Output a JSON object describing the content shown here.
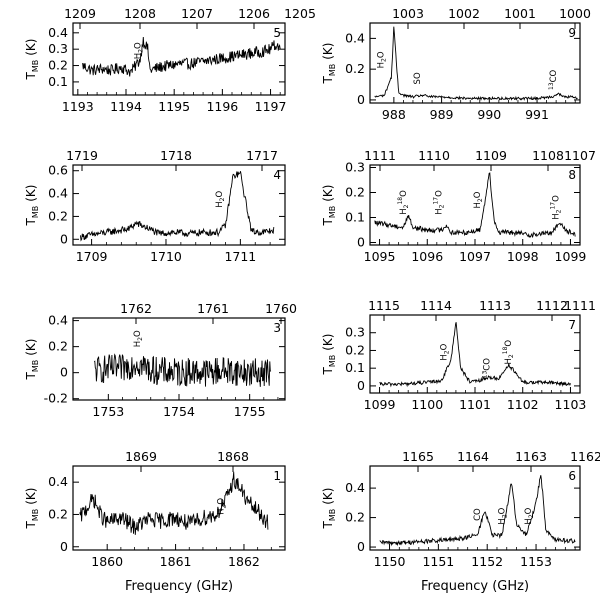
{
  "chart_data": [
    {
      "type": "line",
      "panel_label": "5",
      "bottom_ticks": [
        "1193",
        "1194",
        "1195",
        "1196",
        "1197"
      ],
      "top_ticks": [
        "1209",
        "1208",
        "1207",
        "1206",
        "1205"
      ],
      "y_ticks": [
        "0.1",
        "0.2",
        "0.3",
        "0.4"
      ],
      "xlim": [
        1192.9,
        1197.3
      ],
      "ylim": [
        0.02,
        0.46
      ],
      "ylabel_main": "T",
      "ylabel_sub": "MB",
      "ylabel_unit": "(K)",
      "xlabel": "",
      "annotations": [
        {
          "main": "H",
          "sub": "2",
          "tail": "O",
          "x": 1194.3,
          "y": 0.29
        }
      ],
      "series": [
        {
          "x": [
            1193.1,
            1193.3,
            1193.5,
            1193.7,
            1193.9,
            1194.1,
            1194.3,
            1194.35,
            1194.45,
            1194.5,
            1194.7,
            1194.9,
            1195.1,
            1195.3,
            1195.5,
            1195.7,
            1195.9,
            1196.1,
            1196.3,
            1196.5,
            1196.7,
            1196.9,
            1197.0,
            1197.1,
            1197.2
          ],
          "y": [
            0.2,
            0.17,
            0.18,
            0.17,
            0.19,
            0.16,
            0.24,
            0.36,
            0.3,
            0.17,
            0.19,
            0.2,
            0.21,
            0.21,
            0.22,
            0.23,
            0.24,
            0.25,
            0.26,
            0.27,
            0.28,
            0.29,
            0.3,
            0.33,
            0.31
          ],
          "noise": 0.035
        }
      ]
    },
    {
      "type": "line",
      "panel_label": "4",
      "bottom_ticks": [
        "1709",
        "1710",
        "1711"
      ],
      "top_ticks": [
        "1719",
        "1718",
        "1717"
      ],
      "y_ticks": [
        "0",
        "0.2",
        "0.4",
        "0.6"
      ],
      "xlim": [
        1708.75,
        1711.6
      ],
      "ylim": [
        -0.05,
        0.65
      ],
      "ylabel_main": "T",
      "ylabel_sub": "MB",
      "ylabel_unit": "(K)",
      "xlabel": "",
      "annotations": [
        {
          "main": "H",
          "sub": "2",
          "tail": "O",
          "x": 1710.75,
          "y": 0.35
        }
      ],
      "series": [
        {
          "x": [
            1708.85,
            1709.1,
            1709.3,
            1709.5,
            1709.6,
            1709.75,
            1709.9,
            1710.1,
            1710.3,
            1710.5,
            1710.7,
            1710.8,
            1710.9,
            1711.0,
            1711.05,
            1711.15,
            1711.3,
            1711.45
          ],
          "y": [
            0.02,
            0.05,
            0.07,
            0.09,
            0.14,
            0.1,
            0.05,
            0.06,
            0.05,
            0.06,
            0.06,
            0.12,
            0.55,
            0.58,
            0.4,
            0.07,
            0.06,
            0.08
          ],
          "noise": 0.03
        }
      ]
    },
    {
      "type": "line",
      "panel_label": "3",
      "bottom_ticks": [
        "1753",
        "1754",
        "1755"
      ],
      "top_ticks": [
        "1762",
        "1761",
        "1760"
      ],
      "y_ticks": [
        "-0.2",
        "0",
        "0.2",
        "0.4"
      ],
      "xlim": [
        1752.5,
        1755.5
      ],
      "ylim": [
        -0.21,
        0.42
      ],
      "ylabel_main": "T",
      "ylabel_sub": "MB",
      "ylabel_unit": "(K)",
      "xlabel": "",
      "annotations": [
        {
          "main": "H",
          "sub": "2",
          "tail": "O",
          "x": 1753.45,
          "y": 0.26
        }
      ],
      "series": [
        {
          "x": [
            1752.8,
            1753.0,
            1753.2,
            1753.4,
            1753.6,
            1753.8,
            1754.0,
            1754.2,
            1754.4,
            1754.6,
            1754.8,
            1755.0,
            1755.2,
            1755.3
          ],
          "y": [
            0.02,
            0.03,
            0.03,
            0.08,
            0.02,
            0.01,
            0.0,
            0.01,
            0.0,
            0.02,
            0.01,
            0.0,
            0.0,
            0.01
          ],
          "noise": 0.11
        }
      ]
    },
    {
      "type": "line",
      "panel_label": "1",
      "bottom_ticks": [
        "1860",
        "1861",
        "1862"
      ],
      "top_ticks": [
        "1869",
        "1868"
      ],
      "y_ticks": [
        "0",
        "0.2",
        "0.4"
      ],
      "xlim": [
        1859.5,
        1862.6
      ],
      "ylim": [
        -0.02,
        0.5
      ],
      "ylabel_main": "T",
      "ylabel_sub": "MB",
      "ylabel_unit": "(K)",
      "xlabel": "Frequency (GHz)",
      "annotations": [
        {
          "main": "H",
          "sub": "2",
          "tail": "O",
          "x": 1861.7,
          "y": 0.25
        }
      ],
      "series": [
        {
          "x": [
            1859.6,
            1859.8,
            1859.9,
            1860.0,
            1860.2,
            1860.4,
            1860.6,
            1860.8,
            1861.0,
            1861.2,
            1861.4,
            1861.6,
            1861.75,
            1861.85,
            1861.95,
            1862.05,
            1862.2,
            1862.35
          ],
          "y": [
            0.18,
            0.3,
            0.2,
            0.15,
            0.18,
            0.12,
            0.17,
            0.16,
            0.18,
            0.14,
            0.18,
            0.2,
            0.3,
            0.42,
            0.36,
            0.28,
            0.22,
            0.15
          ],
          "noise": 0.05
        }
      ]
    },
    {
      "type": "line",
      "panel_label": "9",
      "bottom_ticks": [
        "988",
        "989",
        "990",
        "991"
      ],
      "top_ticks": [
        "1003",
        "1002",
        "1001",
        "1000"
      ],
      "y_ticks": [
        "0",
        "0.2",
        "0.4"
      ],
      "xlim": [
        987.5,
        991.9
      ],
      "ylim": [
        -0.02,
        0.5
      ],
      "ylabel_main": "T",
      "ylabel_sub": "MB",
      "ylabel_unit": "(K)",
      "xlabel": "",
      "annotations": [
        {
          "main": "H",
          "sub": "2",
          "tail": "O",
          "x": 987.78,
          "y": 0.26
        },
        {
          "main": "SO",
          "sub": "",
          "tail": "",
          "x": 988.55,
          "y": 0.14
        },
        {
          "main": "CO",
          "sup": "13",
          "sub": "",
          "tail": "",
          "x": 991.4,
          "y": 0.13
        }
      ],
      "series": [
        {
          "x": [
            987.6,
            987.8,
            987.95,
            988.0,
            988.05,
            988.1,
            988.2,
            988.4,
            988.6,
            988.8,
            989.0,
            989.5,
            990.0,
            990.5,
            991.0,
            991.3,
            991.45,
            991.55,
            991.7,
            991.85
          ],
          "y": [
            0.02,
            0.03,
            0.15,
            0.48,
            0.25,
            0.05,
            0.03,
            0.02,
            0.03,
            0.02,
            0.02,
            0.01,
            0.01,
            0.01,
            0.01,
            0.02,
            0.04,
            0.02,
            0.02,
            0.01
          ],
          "noise": 0.008
        }
      ]
    },
    {
      "type": "line",
      "panel_label": "8",
      "bottom_ticks": [
        "1095",
        "1096",
        "1097",
        "1098",
        "1099"
      ],
      "top_ticks": [
        "1111",
        "1110",
        "1109",
        "1108",
        "1107"
      ],
      "y_ticks": [
        "0",
        "0.1",
        "0.2",
        "0.3"
      ],
      "xlim": [
        1094.8,
        1099.2
      ],
      "ylim": [
        -0.01,
        0.31
      ],
      "ylabel_main": "T",
      "ylabel_sub": "MB",
      "ylabel_unit": "(K)",
      "xlabel": "",
      "annotations": [
        {
          "main": "H",
          "sub": "2",
          "sup": "18",
          "tail": "O",
          "x": 1095.55,
          "y": 0.16
        },
        {
          "main": "H",
          "sub": "2",
          "sup": "17",
          "tail": "O",
          "x": 1096.3,
          "y": 0.16
        },
        {
          "main": "H",
          "sub": "2",
          "tail": "O",
          "x": 1097.1,
          "y": 0.17
        },
        {
          "main": "H",
          "sub": "2",
          "sup": "17",
          "tail": "O",
          "x": 1098.75,
          "y": 0.14
        }
      ],
      "series": [
        {
          "x": [
            1094.9,
            1095.2,
            1095.5,
            1095.6,
            1095.7,
            1096.0,
            1096.3,
            1096.4,
            1096.5,
            1096.8,
            1097.1,
            1097.2,
            1097.3,
            1097.4,
            1097.5,
            1097.8,
            1098.2,
            1098.6,
            1098.8,
            1098.9,
            1099.1
          ],
          "y": [
            0.08,
            0.07,
            0.06,
            0.11,
            0.06,
            0.05,
            0.05,
            0.07,
            0.04,
            0.04,
            0.05,
            0.15,
            0.29,
            0.09,
            0.04,
            0.04,
            0.03,
            0.04,
            0.08,
            0.05,
            0.03
          ],
          "noise": 0.01
        }
      ]
    },
    {
      "type": "line",
      "panel_label": "7",
      "bottom_ticks": [
        "1099",
        "1100",
        "1101",
        "1102",
        "1103"
      ],
      "top_ticks": [
        "1115",
        "1114",
        "1113",
        "1112",
        "1111"
      ],
      "y_ticks": [
        "0",
        "0.1",
        "0.2",
        "0.3"
      ],
      "xlim": [
        1098.8,
        1103.2
      ],
      "ylim": [
        -0.04,
        0.4
      ],
      "ylabel_main": "T",
      "ylabel_sub": "MB",
      "ylabel_unit": "(K)",
      "xlabel": "",
      "annotations": [
        {
          "main": "H",
          "sub": "2",
          "tail": "O",
          "x": 1100.4,
          "y": 0.19
        },
        {
          "main": "CO",
          "sup": "13",
          "sub": "",
          "tail": "",
          "x": 1101.3,
          "y": 0.1
        },
        {
          "main": "H",
          "sub": "2",
          "sup": "18",
          "tail": "O",
          "x": 1101.75,
          "y": 0.19
        }
      ],
      "series": [
        {
          "x": [
            1099.0,
            1099.5,
            1100.0,
            1100.3,
            1100.5,
            1100.6,
            1100.7,
            1100.9,
            1101.1,
            1101.3,
            1101.5,
            1101.7,
            1101.8,
            1102.0,
            1102.5,
            1103.0
          ],
          "y": [
            0.01,
            0.01,
            0.02,
            0.03,
            0.15,
            0.37,
            0.1,
            0.02,
            0.03,
            0.05,
            0.04,
            0.12,
            0.09,
            0.02,
            0.02,
            0.01
          ],
          "noise": 0.01
        }
      ]
    },
    {
      "type": "line",
      "panel_label": "6",
      "bottom_ticks": [
        "1150",
        "1151",
        "1152",
        "1153"
      ],
      "top_ticks": [
        "1165",
        "1164",
        "1163",
        "1162"
      ],
      "y_ticks": [
        "0",
        "0.2",
        "0.4"
      ],
      "xlim": [
        1149.6,
        1153.9
      ],
      "ylim": [
        -0.02,
        0.55
      ],
      "ylabel_main": "T",
      "ylabel_sub": "MB",
      "ylabel_unit": "(K)",
      "xlabel": "Frequency (GHz)",
      "annotations": [
        {
          "main": "CO",
          "sub": "",
          "tail": "",
          "x": 1151.85,
          "y": 0.22
        },
        {
          "main": "H",
          "sub": "2",
          "tail": "O",
          "x": 1152.35,
          "y": 0.21
        },
        {
          "main": "H",
          "sub": "2",
          "tail": "O",
          "x": 1152.9,
          "y": 0.21
        }
      ],
      "series": [
        {
          "x": [
            1149.8,
            1150.3,
            1150.8,
            1151.3,
            1151.8,
            1151.95,
            1152.0,
            1152.1,
            1152.3,
            1152.45,
            1152.5,
            1152.6,
            1152.8,
            1153.0,
            1153.1,
            1153.2,
            1153.4,
            1153.8
          ],
          "y": [
            0.03,
            0.03,
            0.04,
            0.05,
            0.08,
            0.25,
            0.2,
            0.08,
            0.08,
            0.35,
            0.45,
            0.15,
            0.08,
            0.3,
            0.5,
            0.12,
            0.05,
            0.04
          ],
          "noise": 0.015
        }
      ]
    }
  ]
}
